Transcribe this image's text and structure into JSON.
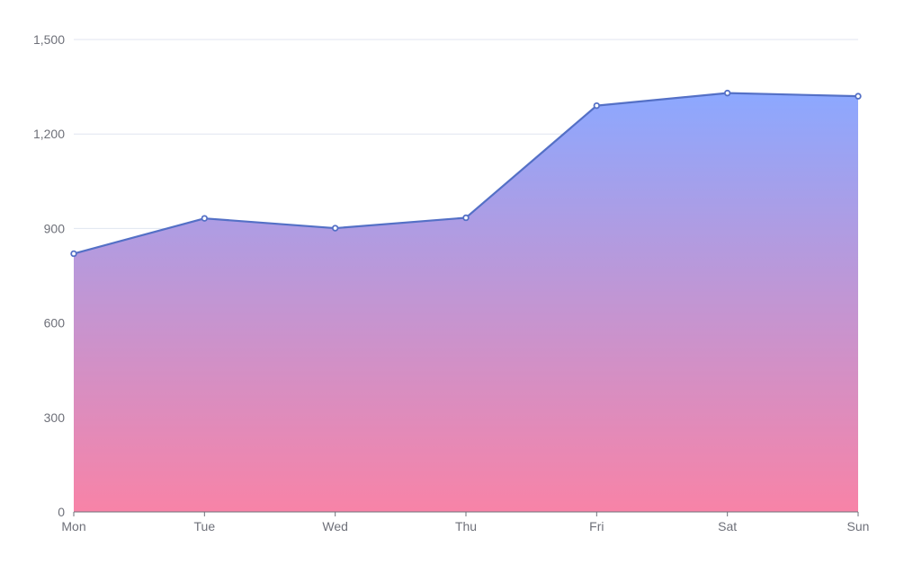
{
  "chart_data": {
    "type": "area",
    "categories": [
      "Mon",
      "Tue",
      "Wed",
      "Thu",
      "Fri",
      "Sat",
      "Sun"
    ],
    "values": [
      820,
      932,
      901,
      934,
      1290,
      1330,
      1320
    ],
    "ylim": [
      0,
      1500
    ],
    "y_ticks": [
      0,
      300,
      600,
      900,
      1200,
      1500
    ],
    "y_tick_labels": [
      "0",
      "300",
      "600",
      "900",
      "1,200",
      "1,500"
    ],
    "grid": true,
    "colors": {
      "line": "#5470c6",
      "area_top": "#8ca8ff",
      "area_bottom": "#f883a7",
      "grid": "#e0e6f1",
      "axis": "#6e7079"
    }
  }
}
